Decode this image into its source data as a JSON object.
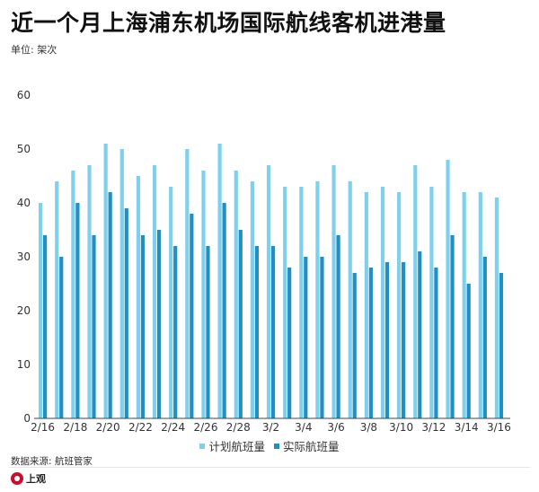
{
  "title": "近一个月上海浦东机场国际航线客机进港量",
  "unit": "单位: 架次",
  "source": "数据来源: 航班管家",
  "logo_text": "上观",
  "colors": {
    "planned": "#7fd0ec",
    "actual": "#1f8fc4"
  },
  "chart_data": {
    "type": "bar",
    "ylim": [
      0,
      60
    ],
    "yticks": [
      0,
      10,
      20,
      30,
      40,
      50,
      60
    ],
    "grid": false,
    "legend": "bottom-center",
    "categories": [
      "2/16",
      "2/17",
      "2/18",
      "2/19",
      "2/20",
      "2/21",
      "2/22",
      "2/23",
      "2/24",
      "2/25",
      "2/26",
      "2/27",
      "2/28",
      "3/1",
      "3/2",
      "3/3",
      "3/4",
      "3/5",
      "3/6",
      "3/7",
      "3/8",
      "3/9",
      "3/10",
      "3/11",
      "3/12",
      "3/13",
      "3/14",
      "3/15",
      "3/16"
    ],
    "tick_labels": [
      "2/16",
      "2/18",
      "2/20",
      "2/22",
      "2/24",
      "2/26",
      "2/28",
      "3/2",
      "3/4",
      "3/6",
      "3/8",
      "3/10",
      "3/12",
      "3/14",
      "3/16"
    ],
    "series": [
      {
        "name": "计划航班量",
        "values": [
          40,
          44,
          46,
          47,
          51,
          50,
          45,
          47,
          43,
          50,
          46,
          51,
          46,
          44,
          47,
          43,
          43,
          44,
          47,
          44,
          42,
          43,
          42,
          47,
          43,
          48,
          42,
          42,
          41
        ]
      },
      {
        "name": "实际航班量",
        "values": [
          34,
          30,
          40,
          34,
          42,
          39,
          34,
          35,
          32,
          38,
          32,
          40,
          35,
          32,
          32,
          28,
          30,
          30,
          34,
          27,
          28,
          29,
          29,
          31,
          28,
          34,
          25,
          30,
          27
        ]
      }
    ]
  }
}
